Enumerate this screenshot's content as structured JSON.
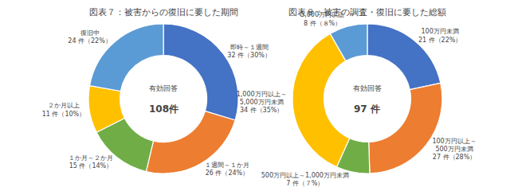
{
  "chart_data": [
    {
      "type": "donut",
      "title": "図表７：被害からの復旧に要した期間",
      "categories": [
        "即時～１週間",
        "１週間～１か月",
        "１か月～２か月",
        "２か月以上",
        "復旧中"
      ],
      "values": [
        32,
        26,
        15,
        11,
        24
      ],
      "value_labels": [
        "32 件（30%）",
        "26 件（24%）",
        "15 件（14%）",
        "11 件（10%）",
        "24 件（22%）"
      ],
      "colors": [
        "#4472C4",
        "#ED7D31",
        "#70AD47",
        "#FFC000",
        "#5B9BD5"
      ],
      "annotations": [
        "有効回答",
        "108件"
      ]
    },
    {
      "type": "donut",
      "title": "図表８：被害の調査・復旧に要した総額",
      "categories": [
        "100万円未満",
        "100万円以上～\n500万円未満",
        "500万円以上～1,000万円未満",
        "1,000万円以上～\n5,000万円未満",
        "5,000万円以上"
      ],
      "values": [
        21,
        27,
        7,
        34,
        8
      ],
      "value_labels": [
        "21 件（22%）",
        "27 件（28%）",
        "7 件（７%）",
        "34 件（35%）",
        "8 件（８%）"
      ],
      "colors": [
        "#4472C4",
        "#ED7D31",
        "#70AD47",
        "#FFC000",
        "#5B9BD5"
      ],
      "annotations": [
        "有効回答",
        "97 件"
      ]
    }
  ]
}
